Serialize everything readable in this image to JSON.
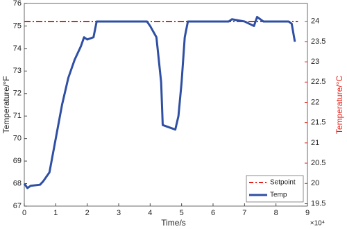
{
  "chart_data": {
    "type": "line",
    "xlabel": "Time/s",
    "x_multiplier": "×10⁴",
    "ylabel": "Temperature/°F",
    "y2label": "Temperature/°C",
    "y2color": "#e8221a",
    "xlim": [
      0,
      9
    ],
    "xticks": [
      0,
      1,
      2,
      3,
      4,
      5,
      6,
      7,
      8,
      9
    ],
    "ylim": [
      67,
      76
    ],
    "yticks": [
      67,
      68,
      69,
      70,
      71,
      72,
      73,
      74,
      75,
      76
    ],
    "y2lim": [
      19.44,
      24.44
    ],
    "y2ticks": [
      19.5,
      20,
      20.5,
      21,
      21.5,
      22,
      22.5,
      23,
      23.5,
      24
    ],
    "legend": "lower right",
    "series": [
      {
        "name": "Setpoint",
        "color": "#e8221a",
        "dash": true,
        "x": [
          0,
          8.7
        ],
        "values": [
          75.2,
          75.2
        ]
      },
      {
        "name": "Temp",
        "color": "#2e4fa3",
        "x": [
          0,
          0.1,
          0.2,
          0.5,
          0.6,
          0.8,
          1.0,
          1.2,
          1.4,
          1.6,
          1.8,
          1.9,
          2.0,
          2.2,
          2.3,
          3.0,
          3.8,
          3.9,
          4.0,
          4.2,
          4.35,
          4.4,
          4.6,
          4.8,
          4.9,
          5.0,
          5.1,
          5.2,
          6.5,
          6.6,
          7.0,
          7.3,
          7.4,
          7.6,
          8.4,
          8.5,
          8.6
        ],
        "values": [
          68.0,
          67.8,
          67.9,
          67.95,
          68.1,
          68.5,
          70.0,
          71.5,
          72.7,
          73.5,
          74.1,
          74.5,
          74.4,
          74.5,
          75.2,
          75.2,
          75.2,
          75.2,
          75.0,
          74.5,
          72.5,
          70.6,
          70.5,
          70.4,
          71.0,
          72.5,
          74.5,
          75.2,
          75.2,
          75.3,
          75.2,
          75.0,
          75.4,
          75.2,
          75.2,
          75.1,
          74.3
        ]
      }
    ]
  }
}
